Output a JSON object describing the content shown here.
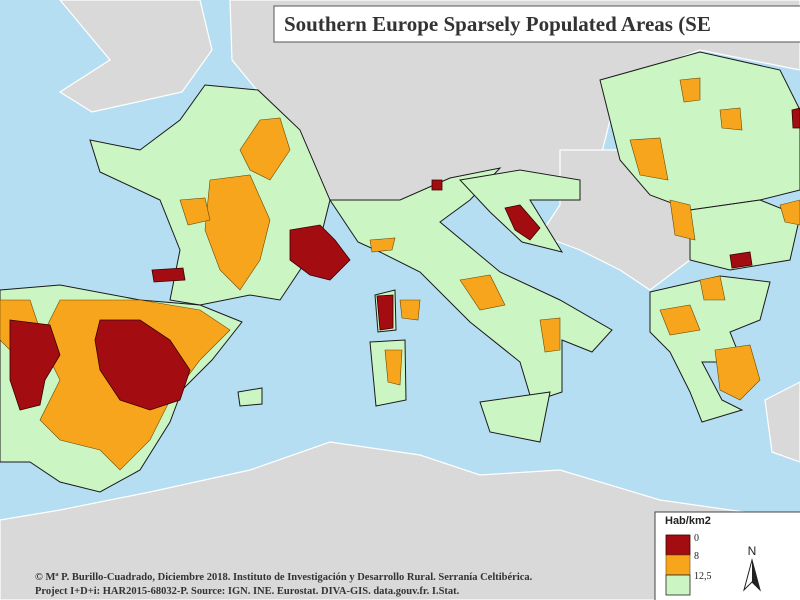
{
  "title": "Southern Europe Sparsely Populated Areas (SE",
  "credits": [
    "© Mª P. Burillo-Cuadrado, Diciembre 2018. Instituto de Investigación y Desarrollo Rural. Serranía Celtibérica.",
    "Project I+D+i: HAR2015-68032-P. Source: IGN. INE. Eurostat. DIVA-GIS. data.gouv.fr. I.Stat."
  ],
  "legend": {
    "title": "Hab/km2",
    "breaks": [
      "0",
      "8",
      "12,5"
    ],
    "north": "N"
  }
}
